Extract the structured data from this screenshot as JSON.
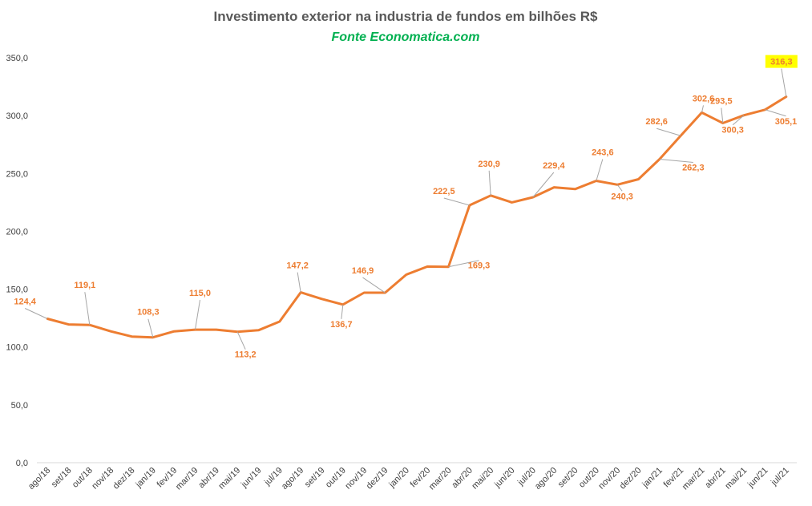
{
  "chart_data": {
    "type": "line",
    "title": "Investimento exterior na industria de fundos em bilhões R$",
    "subtitle": "Fonte Economatica.com",
    "ylim": [
      0,
      350
    ],
    "yticks": [
      "0,0",
      "50,0",
      "100,0",
      "150,0",
      "200,0",
      "250,0",
      "300,0",
      "350,0"
    ],
    "grid": false,
    "categories": [
      "ago/18",
      "set/18",
      "out/18",
      "nov/18",
      "dez/18",
      "jan/19",
      "fev/19",
      "mar/19",
      "abr/19",
      "mai/19",
      "jun/19",
      "jul/19",
      "ago/19",
      "set/19",
      "out/19",
      "nov/19",
      "dez/19",
      "jan/20",
      "fev/20",
      "mar/20",
      "abr/20",
      "mai/20",
      "jun/20",
      "jul/20",
      "ago/20",
      "set/20",
      "out/20",
      "nov/20",
      "dez/20",
      "jan/21",
      "fev/21",
      "mar/21",
      "abr/21",
      "mai/21",
      "jun/21",
      "jul/21"
    ],
    "series": [
      {
        "color": "#ed7d31",
        "values": [
          124.4,
          119.5,
          119.1,
          113.5,
          109.0,
          108.3,
          113.5,
          115.0,
          115.0,
          113.2,
          114.5,
          122.0,
          147.2,
          141.5,
          136.7,
          146.9,
          146.9,
          162.5,
          169.5,
          169.3,
          222.5,
          230.9,
          225.0,
          229.4,
          238.0,
          236.5,
          243.6,
          240.3,
          245.0,
          262.3,
          282.6,
          302.6,
          293.5,
          300.3,
          305.1,
          316.3
        ]
      }
    ],
    "data_labels": [
      {
        "index": 0,
        "text": "124,4"
      },
      {
        "index": 2,
        "text": "119,1"
      },
      {
        "index": 5,
        "text": "108,3"
      },
      {
        "index": 7,
        "text": "115,0"
      },
      {
        "index": 9,
        "text": "113,2"
      },
      {
        "index": 12,
        "text": "147,2"
      },
      {
        "index": 14,
        "text": "136,7"
      },
      {
        "index": 16,
        "text": "146,9"
      },
      {
        "index": 19,
        "text": "169,3"
      },
      {
        "index": 20,
        "text": "222,5"
      },
      {
        "index": 21,
        "text": "230,9"
      },
      {
        "index": 23,
        "text": "229,4"
      },
      {
        "index": 26,
        "text": "243,6"
      },
      {
        "index": 27,
        "text": "240,3"
      },
      {
        "index": 29,
        "text": "262,3"
      },
      {
        "index": 30,
        "text": "282,6"
      },
      {
        "index": 31,
        "text": "302,6"
      },
      {
        "index": 32,
        "text": "293,5"
      },
      {
        "index": 33,
        "text": "300,3"
      },
      {
        "index": 34,
        "text": "305,1"
      },
      {
        "index": 35,
        "text": "316,3",
        "highlight": "#ffff00"
      }
    ]
  }
}
